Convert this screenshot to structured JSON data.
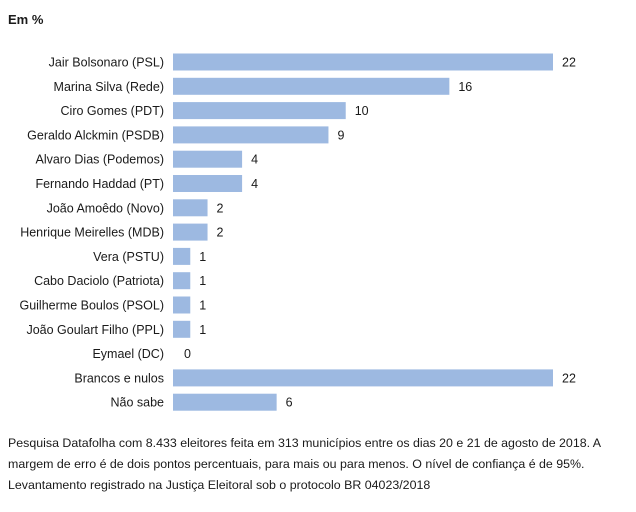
{
  "unit_label": "Em %",
  "footnote": "Pesquisa Datafolha com 8.433 eleitores feita em 313 municípios entre os dias 20 e 21 de agosto de 2018. A margem de erro é de dois pontos percentuais, para mais ou para menos. O nível de confiança é de 95%. Levantamento registrado na Justiça Eleitoral sob o protocolo BR 04023/2018",
  "colors": {
    "bar": "#9db9e1",
    "text": "#1a1a1a"
  },
  "chart_data": {
    "type": "bar",
    "orientation": "horizontal",
    "title": "",
    "xlabel": "",
    "ylabel": "",
    "xlim": [
      0,
      22
    ],
    "grid": false,
    "legend": "none",
    "categories": [
      "Jair Bolsonaro (PSL)",
      "Marina Silva (Rede)",
      "Ciro Gomes (PDT)",
      "Geraldo Alckmin (PSDB)",
      "Alvaro Dias (Podemos)",
      "Fernando Haddad (PT)",
      "João Amoêdo (Novo)",
      "Henrique Meirelles (MDB)",
      "Vera (PSTU)",
      "Cabo Daciolo (Patriota)",
      "Guilherme Boulos (PSOL)",
      "João Goulart Filho (PPL)",
      "Eymael (DC)",
      "Brancos e nulos",
      "Não sabe"
    ],
    "values": [
      22,
      16,
      10,
      9,
      4,
      4,
      2,
      2,
      1,
      1,
      1,
      1,
      0,
      22,
      6
    ]
  }
}
